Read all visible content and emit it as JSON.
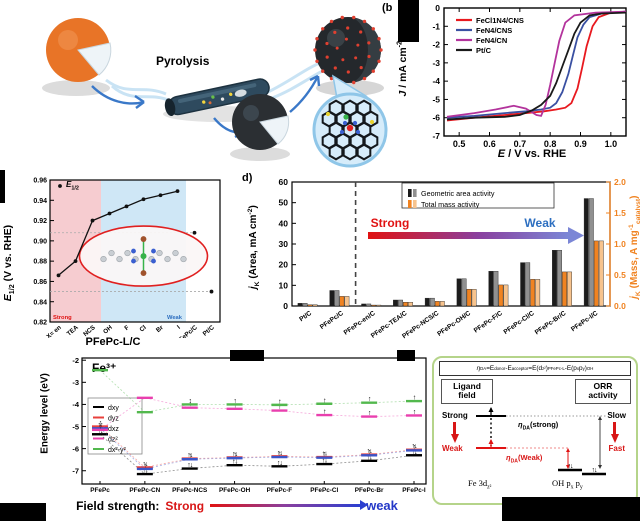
{
  "panel_a": {
    "pyrolysis_label": "Pyrolysis"
  },
  "panel_b": {
    "label": "(b"
  },
  "panel_c": {
    "label": ")",
    "legend_parts": [
      {
        "t": "E",
        "i": 1
      },
      {
        "t": "1/2",
        "s": 1
      }
    ],
    "ylabel_parts": [
      {
        "t": "E",
        "i": 1
      },
      {
        "t": "1/2",
        "s": 1
      },
      {
        "t": " (V vs. RHE)"
      }
    ],
    "xlabel": "PFePc-L/C"
  },
  "panel_d": {
    "label": "d)",
    "ylabel_left_parts": [
      {
        "t": "j",
        "i": 1
      },
      {
        "t": "K",
        "s": 1
      },
      {
        "t": " (Area, mA cm"
      },
      {
        "t": "-2",
        "p": 1
      },
      {
        "t": ")"
      }
    ],
    "ylabel_right_parts": [
      {
        "t": "j",
        "i": 1
      },
      {
        "t": "K",
        "s": 1
      },
      {
        "t": " (Mass, A mg"
      },
      {
        "t": "-1",
        "p": 1
      },
      {
        "t": "catalyst",
        "s": 1
      },
      {
        "t": ")"
      }
    ]
  },
  "panel_b_labels": {
    "xlabel_parts": [
      {
        "t": "E",
        "i": 1
      },
      {
        "t": " / V vs. RHE"
      }
    ],
    "ylabel_parts": [
      {
        "t": "J",
        "i": 1
      },
      {
        "t": " / mA cm"
      },
      {
        "t": "-2",
        "p": 1
      }
    ]
  },
  "chart_data": [
    {
      "id": "b",
      "type": "line",
      "xlabel": "E / V vs. RHE",
      "ylabel": "J / mA cm-2",
      "xlim": [
        0.45,
        1.05
      ],
      "ylim": [
        -7,
        0
      ],
      "xticks": [
        0.5,
        0.6,
        0.7,
        0.8,
        0.9,
        1.0
      ],
      "yticks": [
        0,
        -1,
        -2,
        -3,
        -4,
        -5,
        -6,
        -7
      ],
      "legend_position": "top-left",
      "grid": false,
      "series": [
        {
          "name": "FeCl1N4/CNS",
          "color": "#e8191f",
          "x": [
            0.46,
            0.55,
            0.65,
            0.72,
            0.78,
            0.82,
            0.85,
            0.87,
            0.89,
            0.905,
            0.92,
            0.94,
            0.96,
            1.0,
            1.05
          ],
          "y": [
            -6.15,
            -6.0,
            -5.85,
            -5.75,
            -5.65,
            -5.55,
            -5.45,
            -5.2,
            -4.4,
            -3.3,
            -2.1,
            -1.0,
            -0.5,
            -0.25,
            -0.2
          ]
        },
        {
          "name": "FeN4/CNS",
          "color": "#3a50a2",
          "x": [
            0.46,
            0.55,
            0.65,
            0.72,
            0.77,
            0.8,
            0.82,
            0.84,
            0.86,
            0.875,
            0.89,
            0.91,
            0.93,
            0.97,
            1.05
          ],
          "y": [
            -6.0,
            -5.9,
            -5.75,
            -5.65,
            -5.55,
            -5.45,
            -5.2,
            -4.6,
            -3.6,
            -2.6,
            -1.6,
            -0.9,
            -0.5,
            -0.3,
            -0.2
          ]
        },
        {
          "name": "FeN4/CN",
          "color": "#b3339c",
          "x": [
            0.46,
            0.55,
            0.62,
            0.68,
            0.72,
            0.755,
            0.77,
            0.785,
            0.8,
            0.815,
            0.83,
            0.85,
            0.88,
            0.95,
            1.05
          ],
          "y": [
            -5.95,
            -5.75,
            -5.55,
            -5.35,
            -5.5,
            -5.85,
            -5.9,
            -5.3,
            -4.2,
            -3.0,
            -1.8,
            -0.8,
            -0.4,
            -0.25,
            -0.2
          ]
        },
        {
          "name": "Pt/C",
          "color": "#1a1a1a",
          "x": [
            0.46,
            0.55,
            0.65,
            0.7,
            0.74,
            0.77,
            0.8,
            0.82,
            0.84,
            0.86,
            0.88,
            0.9,
            0.93,
            0.97,
            1.05
          ],
          "y": [
            -6.1,
            -6.0,
            -5.95,
            -5.85,
            -5.6,
            -5.3,
            -4.8,
            -4.1,
            -3.2,
            -2.3,
            -1.4,
            -0.8,
            -0.4,
            -0.3,
            -0.25
          ]
        }
      ]
    },
    {
      "id": "c",
      "type": "scatter-line",
      "ylabel": "E1/2 (V vs. RHE)",
      "xlabel": "PFePc-L/C",
      "ylim": [
        0.82,
        0.96
      ],
      "yticks": [
        0.96,
        0.94,
        0.92,
        0.9,
        0.88,
        0.86,
        0.84,
        0.82
      ],
      "categories": [
        "X= en",
        "TEA",
        "NCS",
        "OH",
        "F",
        "Cl",
        "Br",
        "I",
        "PFePc/C",
        "Pt/C"
      ],
      "values": [
        0.866,
        0.88,
        0.92,
        0.927,
        0.934,
        0.941,
        0.945,
        0.949
      ],
      "isolated": [
        {
          "category": "PFePc/C",
          "index": 8,
          "value": 0.908
        },
        {
          "category": "Pt/C",
          "index": 9,
          "value": 0.85
        }
      ],
      "legend": "E1/2",
      "marker_color": "#111111",
      "bands": [
        {
          "from": 0,
          "to": 3,
          "color": "#f6ccd0"
        },
        {
          "from": 3,
          "to": 8,
          "color": "#cfe7f6"
        }
      ],
      "strong_label": "Strong",
      "weak_label": "Weak",
      "strong_color": "#e01212",
      "weak_color": "#2d6fc0"
    },
    {
      "id": "d",
      "type": "bar",
      "ylabel_left": "jK (Area, mA cm-2)",
      "ylabel_right": "jK (Mass, A mg-1 catalyst)",
      "ylim_left": [
        0,
        60
      ],
      "ylim_right": [
        0,
        2
      ],
      "yticks_left": [
        0,
        10,
        20,
        30,
        40,
        50,
        60
      ],
      "yticks_right": [
        0.0,
        0.5,
        1.0,
        1.5,
        2.0
      ],
      "categories": [
        "Pt/C",
        "PFePc/C",
        "PFePc-en/C",
        "PFePc-TEA/C",
        "PFePc-NCS/C",
        "PFePc-OH/C",
        "PFePc-F/C",
        "PFePc-Cl/C",
        "PFePc-Br/C",
        "PFePc-I/C"
      ],
      "area_values": [
        1.3,
        7.5,
        1.0,
        2.9,
        3.8,
        13.2,
        16.8,
        21.0,
        27.0,
        52.0
      ],
      "mass_values": [
        0.02,
        0.155,
        0.015,
        0.06,
        0.075,
        0.27,
        0.34,
        0.43,
        0.55,
        1.05
      ],
      "bar_colors": [
        "#1c1c1c",
        "#909090",
        "#f08321",
        "#f7c38d"
      ],
      "legend": [
        "Geometric area activity",
        "Total mass activity"
      ],
      "strong_label": "Strong",
      "weak_label": "Weak",
      "strong_color": "#e01212",
      "weak_color": "#2d6fc0",
      "right_axis_color": "#f08321",
      "dashed_separator_after": 2
    },
    {
      "id": "e",
      "type": "energy-levels",
      "title": "Fe³⁺",
      "ylabel": "Energy level (eV)",
      "ylim": [
        -7.6,
        -1.9
      ],
      "yticks": [
        -2,
        -3,
        -4,
        -5,
        -6,
        -7
      ],
      "categories": [
        "PFePc",
        "PFePc-CN",
        "PFePc-NCS",
        "PFePc-OH",
        "PFePc-F",
        "PFePc-Cl",
        "PFePc-Br",
        "PFePc-I"
      ],
      "series": [
        {
          "name": "dxy",
          "color": "#000000",
          "values": [
            -5.35,
            -7.15,
            -6.9,
            -6.75,
            -6.8,
            -6.7,
            -6.55,
            -6.3
          ],
          "electrons": [
            "↑↓",
            "↑↓",
            "↑↓",
            "↑↓",
            "↑↓",
            "↑↓",
            "↑↓",
            "↑↓"
          ]
        },
        {
          "name": "dyz",
          "color": "#e8413c",
          "values": [
            -5.0,
            -6.85,
            -6.45,
            -6.4,
            -6.35,
            -6.38,
            -6.27,
            -6.05
          ],
          "electrons": [
            "↑",
            "↑↓",
            "↑↓",
            "↑↓",
            "↑↓",
            "↑↓",
            "↑↓",
            "↑↓"
          ]
        },
        {
          "name": "dxz",
          "color": "#3c55c8",
          "values": [
            -5.08,
            -6.92,
            -6.48,
            -6.43,
            -6.38,
            -6.41,
            -6.3,
            -6.08
          ],
          "electrons": [
            "↑↑",
            "↑",
            "↑",
            "↑",
            "↑",
            "↑",
            "↑",
            "↑"
          ]
        },
        {
          "name": "dz²",
          "color": "#e93fae",
          "values": [
            -5.15,
            -3.7,
            -4.15,
            -4.2,
            -4.28,
            -4.48,
            -4.55,
            -4.5
          ],
          "electrons": [
            "↑",
            "",
            "↑",
            "↑",
            "↑",
            "↑",
            "↑",
            "↑"
          ]
        },
        {
          "name": "dx²-y²",
          "color": "#52b84d",
          "values": [
            -2.45,
            -4.35,
            -4.0,
            -4.0,
            -4.02,
            -3.97,
            -3.92,
            -3.85
          ],
          "electrons": [
            "",
            "",
            "↑",
            "↑",
            "↑",
            "↑",
            "↑",
            "↑"
          ]
        }
      ],
      "footer": {
        "prefix": "Field strength:",
        "strong": "Strong",
        "weak": "weak"
      }
    }
  ],
  "panel_f": {
    "formula_parts": [
      {
        "t": "η",
        "i": 1
      },
      {
        "t": "DA",
        "s": 1
      },
      {
        "t": "=E"
      },
      {
        "t": "donor",
        "s": 1
      },
      {
        "t": "-E"
      },
      {
        "t": "acceptor",
        "s": 1
      },
      {
        "t": "=E(d"
      },
      {
        "t": "z²",
        "s": 1
      },
      {
        "t": ")"
      },
      {
        "t": "PFePc-L",
        "s": 1
      },
      {
        "t": "-E(p"
      },
      {
        "t": "x",
        "s": 1
      },
      {
        "t": " p"
      },
      {
        "t": "y",
        "s": 1
      },
      {
        "t": ")"
      },
      {
        "t": "OH",
        "s": 1
      }
    ],
    "ligand_box": "Ligand field",
    "orr_box": "ORR activity",
    "strong": "Strong",
    "weak": "Weak",
    "slow": "Slow",
    "fast": "Fast",
    "eta_strong_parts": [
      {
        "t": "η",
        "i": 1
      },
      {
        "t": "DA",
        "s": 1
      },
      {
        "t": "(strong)"
      }
    ],
    "eta_weak_parts": [
      {
        "t": "η",
        "i": 1
      },
      {
        "t": "DA",
        "s": 1
      },
      {
        "t": "(Weak)"
      }
    ],
    "donor_parts": [
      {
        "t": "Fe 3d"
      },
      {
        "t": "z²",
        "s": 1
      }
    ],
    "acceptor_parts": [
      {
        "t": "OH p"
      },
      {
        "t": "x",
        "s": 1
      },
      {
        "t": " p"
      },
      {
        "t": "y",
        "s": 1
      }
    ]
  }
}
